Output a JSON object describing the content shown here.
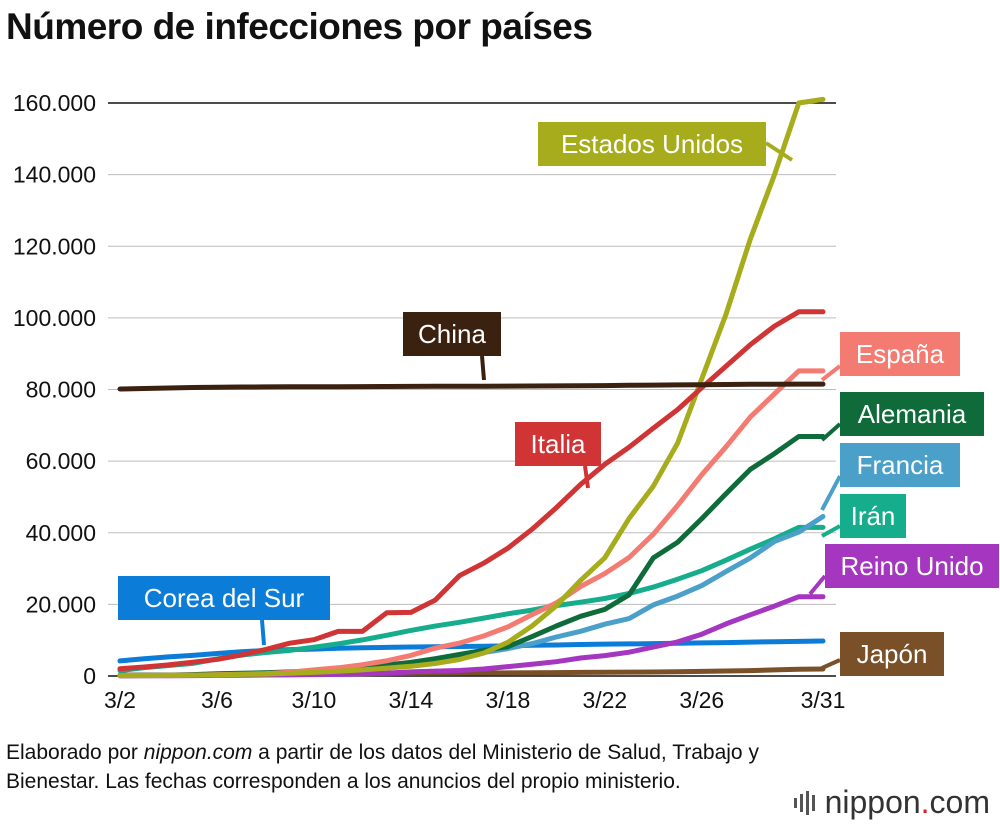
{
  "title": "Número de infecciones por países",
  "footnote": {
    "prefix": "Elaborado por ",
    "source": "nippon.com",
    "suffix": " a partir de los datos del Ministerio de Salud, Trabajo y Bienestar. Las fechas corresponden a los anuncios del propio ministerio."
  },
  "brand": {
    "name": "nippon",
    "dot": ".",
    "tld": "com",
    "icon": "nippon-sound-wave-icon"
  },
  "chart_data": {
    "type": "line",
    "title": "Número de infecciones por países",
    "xlabel": "",
    "ylabel": "",
    "x": [
      "3/2",
      "3/3",
      "3/4",
      "3/5",
      "3/6",
      "3/7",
      "3/8",
      "3/9",
      "3/10",
      "3/11",
      "3/12",
      "3/13",
      "3/14",
      "3/15",
      "3/16",
      "3/17",
      "3/18",
      "3/19",
      "3/20",
      "3/21",
      "3/22",
      "3/23",
      "3/24",
      "3/25",
      "3/26",
      "3/27",
      "3/28",
      "3/29",
      "3/30",
      "3/31"
    ],
    "x_ticks": [
      "3/2",
      "3/6",
      "3/10",
      "3/14",
      "3/18",
      "3/22",
      "3/26",
      "3/31"
    ],
    "ylim": [
      0,
      160000
    ],
    "y_ticks": [
      0,
      20000,
      40000,
      60000,
      80000,
      100000,
      120000,
      140000,
      160000
    ],
    "y_tick_labels": [
      "0",
      "20.000",
      "40.000",
      "60.000",
      "80.000",
      "100.000",
      "120.000",
      "140.000",
      "160.000"
    ],
    "grid": true,
    "series": [
      {
        "name": "China",
        "label": "China",
        "color": "#3b2110",
        "values": [
          80150,
          80270,
          80410,
          80550,
          80650,
          80700,
          80735,
          80755,
          80770,
          80790,
          80815,
          80845,
          80860,
          80880,
          80900,
          80925,
          80950,
          80975,
          81005,
          81050,
          81095,
          81160,
          81220,
          81280,
          81330,
          81400,
          81440,
          81470,
          81500,
          81520
        ]
      },
      {
        "name": "Estados Unidos",
        "label": "Estados Unidos",
        "color": "#a6ac1c",
        "values": [
          100,
          120,
          160,
          230,
          320,
          450,
          540,
          760,
          1000,
          1300,
          1700,
          2200,
          2700,
          3500,
          4600,
          6400,
          9400,
          14000,
          19600,
          26700,
          33000,
          44000,
          53000,
          65000,
          83000,
          101000,
          122000,
          140000,
          160000,
          161000
        ]
      },
      {
        "name": "Italia",
        "label": "Italia",
        "color": "#d03434",
        "values": [
          2036,
          2502,
          3089,
          3858,
          4636,
          5883,
          7375,
          9172,
          10149,
          12462,
          12462,
          17660,
          17750,
          21157,
          28000,
          31500,
          35700,
          41000,
          47000,
          53500,
          59100,
          63900,
          69200,
          74400,
          80500,
          86500,
          92500,
          97700,
          101700,
          101700
        ]
      },
      {
        "name": "España",
        "label": "España",
        "color": "#f47b72",
        "values": [
          120,
          165,
          222,
          259,
          400,
          500,
          673,
          1073,
          1695,
          2277,
          3146,
          4231,
          5753,
          7753,
          9191,
          11178,
          13716,
          17147,
          20400,
          25000,
          28600,
          33100,
          39600,
          47600,
          56200,
          64000,
          72300,
          78800,
          85200,
          85200
        ]
      },
      {
        "name": "Alemania",
        "label": "Alemania",
        "color": "#0f6b39",
        "values": [
          150,
          196,
          262,
          400,
          639,
          795,
          902,
          1139,
          1296,
          1567,
          2369,
          3062,
          3795,
          4838,
          6012,
          7156,
          8198,
          10999,
          13957,
          16662,
          18610,
          22672,
          32986,
          37323,
          43938,
          50871,
          57695,
          62095,
          66885,
          66885
        ]
      },
      {
        "name": "Francia",
        "label": "Francia",
        "color": "#4aa0c8",
        "values": [
          130,
          191,
          212,
          285,
          423,
          613,
          706,
          1126,
          1412,
          1784,
          2281,
          2876,
          3661,
          4469,
          5380,
          6573,
          7652,
          9043,
          10877,
          12475,
          14459,
          16018,
          19856,
          22304,
          25233,
          29155,
          32964,
          37575,
          40174,
          44550
        ]
      },
      {
        "name": "Irán",
        "label": "Irán",
        "color": "#15ad8c",
        "values": [
          1501,
          2336,
          2922,
          3513,
          4747,
          5823,
          6566,
          7161,
          8042,
          9000,
          10075,
          11364,
          12729,
          13938,
          14991,
          16169,
          17361,
          18407,
          19644,
          20610,
          21638,
          23049,
          24811,
          27017,
          29406,
          32332,
          35408,
          38309,
          41495,
          41495
        ]
      },
      {
        "name": "Reino Unido",
        "label": "Reino Unido",
        "color": "#a436c0",
        "values": [
          40,
          51,
          87,
          116,
          164,
          209,
          278,
          321,
          383,
          460,
          590,
          798,
          1140,
          1372,
          1543,
          1950,
          2626,
          3269,
          3983,
          5018,
          5683,
          6650,
          8077,
          9529,
          11658,
          14543,
          17089,
          19522,
          22141,
          22141
        ]
      },
      {
        "name": "Corea del Sur",
        "label": "Corea del Sur",
        "color": "#0b7dd9",
        "values": [
          4212,
          4812,
          5328,
          5766,
          6284,
          6767,
          7134,
          7382,
          7513,
          7755,
          7869,
          7979,
          8086,
          8162,
          8236,
          8320,
          8413,
          8565,
          8652,
          8799,
          8897,
          8961,
          9037,
          9137,
          9241,
          9332,
          9478,
          9583,
          9661,
          9786
        ]
      },
      {
        "name": "Japón",
        "label": "Japón",
        "color": "#7a5028",
        "values": [
          254,
          268,
          284,
          317,
          349,
          408,
          455,
          488,
          514,
          568,
          620,
          675,
          716,
          780,
          814,
          829,
          873,
          924,
          950,
          1007,
          1054,
          1089,
          1128,
          1193,
          1291,
          1387,
          1499,
          1693,
          1866,
          1953
        ]
      }
    ]
  }
}
